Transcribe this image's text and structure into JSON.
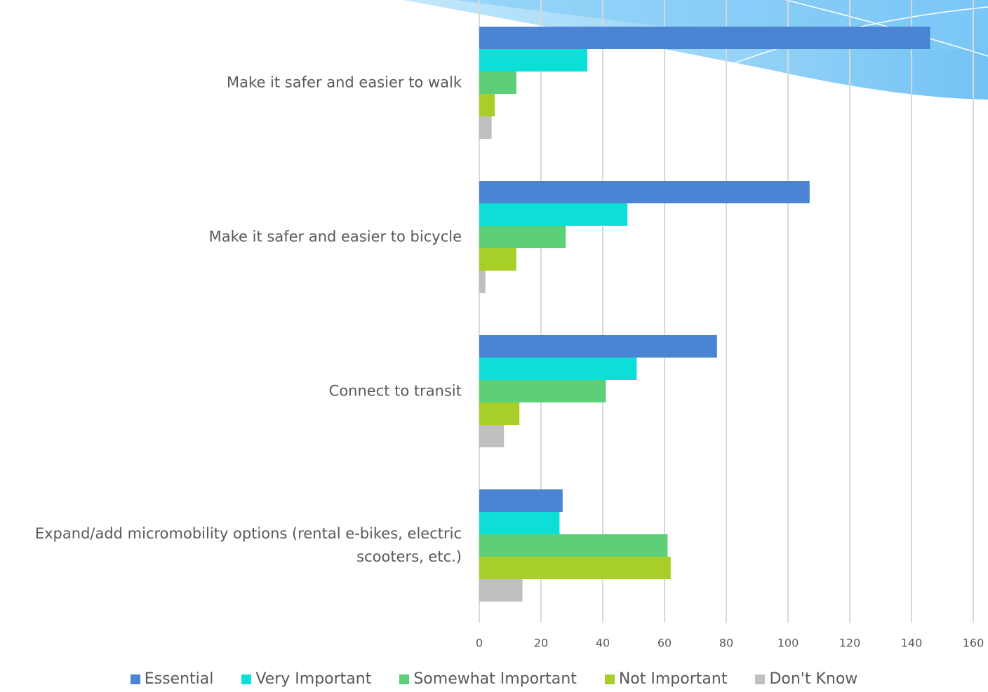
{
  "chart_data": {
    "type": "bar",
    "orientation": "horizontal",
    "categories": [
      "Make it safer and easier to walk",
      "Make it safer and easier to bicycle",
      "Connect to transit",
      "Expand/add micromobility options (rental e-bikes, electric scooters, etc.)"
    ],
    "series": [
      {
        "name": "Essential",
        "color": "#4a84d3",
        "values": [
          146,
          107,
          77,
          27
        ]
      },
      {
        "name": "Very Important",
        "color": "#0ddfd8",
        "values": [
          35,
          48,
          51,
          26
        ]
      },
      {
        "name": "Somewhat Important",
        "color": "#5ccf78",
        "values": [
          12,
          28,
          41,
          61
        ]
      },
      {
        "name": "Not Important",
        "color": "#a8ce28",
        "values": [
          5,
          12,
          13,
          62
        ]
      },
      {
        "name": "Don't Know",
        "color": "#bfbfbf",
        "values": [
          4,
          2,
          8,
          14
        ]
      }
    ],
    "xlim": [
      0,
      160
    ],
    "xticks": [
      0,
      20,
      40,
      60,
      80,
      100,
      120,
      140,
      160
    ],
    "grid": true
  }
}
